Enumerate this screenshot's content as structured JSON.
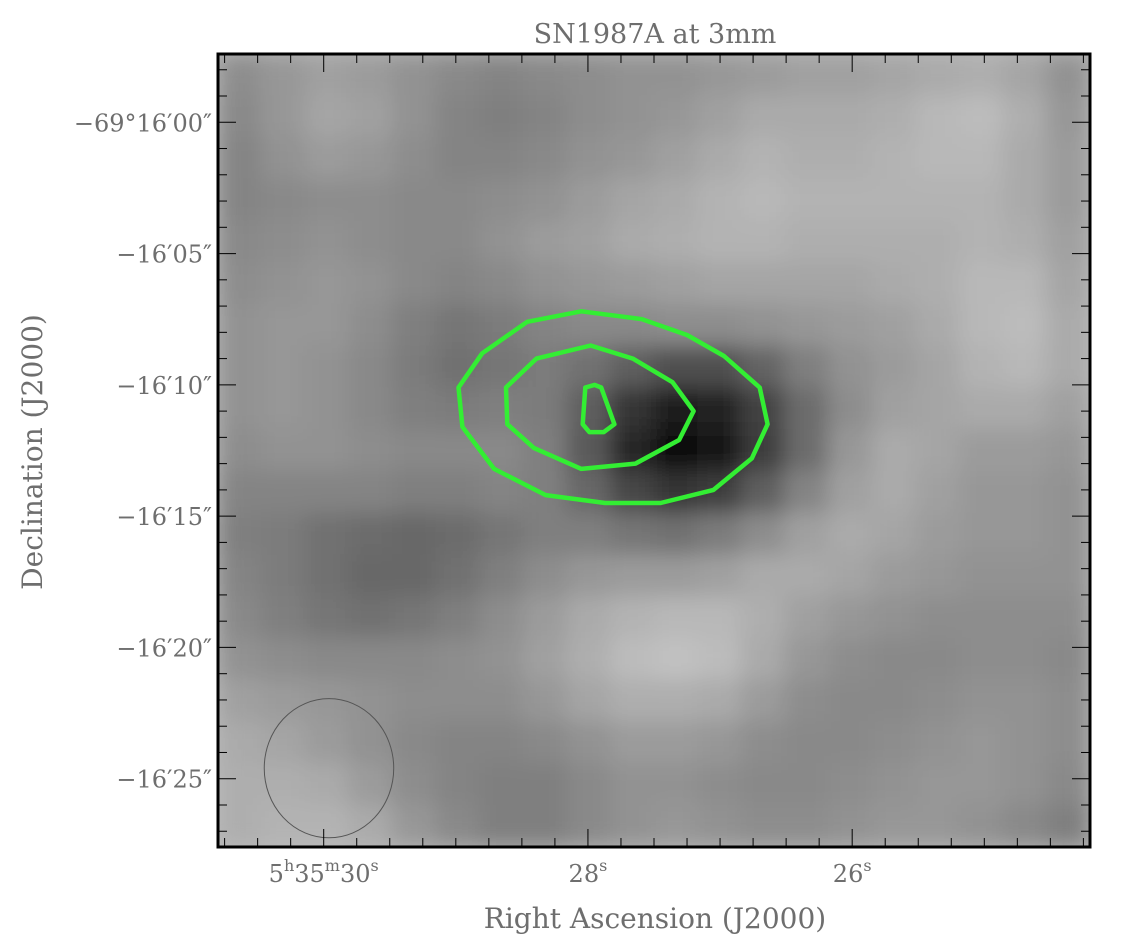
{
  "chart_data": {
    "type": "heatmap",
    "title": "SN1987A at 3mm",
    "xlabel": "Right Ascension (J2000)",
    "ylabel": "Declination (J2000)",
    "x_unit": "RA offset (s), 0 = 5h35m30s",
    "y_unit": "Dec offset (arcsec), 0 = -69°16'00\"",
    "xlim": [
      0.8,
      -5.8
    ],
    "ylim": [
      2.6,
      -27.6
    ],
    "x_ticks": [
      {
        "value": 0,
        "label": "5h35m30s",
        "parts": [
          {
            "t": "5",
            "sup": false
          },
          {
            "t": "h",
            "sup": true
          },
          {
            "t": "35",
            "sup": false
          },
          {
            "t": "m",
            "sup": true
          },
          {
            "t": "30",
            "sup": false
          },
          {
            "t": "s",
            "sup": true
          }
        ]
      },
      {
        "value": -2,
        "label": "28s",
        "parts": [
          {
            "t": "28",
            "sup": false
          },
          {
            "t": "s",
            "sup": true
          }
        ]
      },
      {
        "value": -4,
        "label": "26s",
        "parts": [
          {
            "t": "26",
            "sup": false
          },
          {
            "t": "s",
            "sup": true
          }
        ]
      }
    ],
    "y_ticks": [
      {
        "value": 0,
        "label": "−69°16′00″"
      },
      {
        "value": -5,
        "label": "−16′05″"
      },
      {
        "value": -10,
        "label": "−16′10″"
      },
      {
        "value": -15,
        "label": "−16′15″"
      },
      {
        "value": -20,
        "label": "−16′20″"
      },
      {
        "value": -25,
        "label": "−16′25″"
      }
    ],
    "image_grid": {
      "cols": 20,
      "rows": 19,
      "values": [
        [
          0.42,
          0.38,
          0.34,
          0.36,
          0.4,
          0.44,
          0.46,
          0.44,
          0.42,
          0.4,
          0.4,
          0.38,
          0.36,
          0.34,
          0.34,
          0.32,
          0.3,
          0.28,
          0.32,
          0.4
        ],
        [
          0.44,
          0.38,
          0.32,
          0.34,
          0.4,
          0.46,
          0.48,
          0.46,
          0.42,
          0.4,
          0.38,
          0.34,
          0.3,
          0.3,
          0.3,
          0.28,
          0.24,
          0.22,
          0.28,
          0.38
        ],
        [
          0.46,
          0.4,
          0.36,
          0.38,
          0.42,
          0.46,
          0.46,
          0.44,
          0.4,
          0.38,
          0.34,
          0.3,
          0.26,
          0.28,
          0.28,
          0.26,
          0.24,
          0.24,
          0.3,
          0.36
        ],
        [
          0.46,
          0.44,
          0.42,
          0.42,
          0.44,
          0.44,
          0.42,
          0.4,
          0.36,
          0.32,
          0.3,
          0.26,
          0.24,
          0.26,
          0.26,
          0.26,
          0.26,
          0.26,
          0.3,
          0.36
        ],
        [
          0.44,
          0.42,
          0.4,
          0.42,
          0.44,
          0.44,
          0.4,
          0.36,
          0.34,
          0.3,
          0.28,
          0.26,
          0.26,
          0.28,
          0.28,
          0.28,
          0.28,
          0.26,
          0.28,
          0.34
        ],
        [
          0.42,
          0.4,
          0.38,
          0.4,
          0.44,
          0.46,
          0.44,
          0.4,
          0.38,
          0.36,
          0.34,
          0.32,
          0.32,
          0.32,
          0.32,
          0.3,
          0.28,
          0.24,
          0.24,
          0.32
        ],
        [
          0.4,
          0.38,
          0.38,
          0.42,
          0.48,
          0.52,
          0.5,
          0.46,
          0.44,
          0.44,
          0.42,
          0.42,
          0.4,
          0.38,
          0.36,
          0.34,
          0.3,
          0.24,
          0.22,
          0.3
        ],
        [
          0.4,
          0.38,
          0.4,
          0.44,
          0.5,
          0.54,
          0.52,
          0.5,
          0.54,
          0.62,
          0.68,
          0.68,
          0.6,
          0.48,
          0.4,
          0.36,
          0.32,
          0.26,
          0.24,
          0.3
        ],
        [
          0.4,
          0.38,
          0.4,
          0.44,
          0.48,
          0.5,
          0.48,
          0.5,
          0.62,
          0.8,
          0.9,
          0.88,
          0.74,
          0.56,
          0.42,
          0.34,
          0.32,
          0.3,
          0.3,
          0.34
        ],
        [
          0.42,
          0.4,
          0.4,
          0.42,
          0.44,
          0.44,
          0.44,
          0.48,
          0.64,
          0.86,
          0.96,
          0.92,
          0.76,
          0.56,
          0.38,
          0.3,
          0.32,
          0.36,
          0.36,
          0.38
        ],
        [
          0.46,
          0.46,
          0.46,
          0.46,
          0.48,
          0.48,
          0.46,
          0.48,
          0.58,
          0.72,
          0.8,
          0.76,
          0.62,
          0.46,
          0.34,
          0.3,
          0.34,
          0.38,
          0.38,
          0.4
        ],
        [
          0.48,
          0.5,
          0.54,
          0.56,
          0.58,
          0.56,
          0.52,
          0.48,
          0.48,
          0.52,
          0.54,
          0.5,
          0.42,
          0.34,
          0.3,
          0.32,
          0.36,
          0.38,
          0.38,
          0.4
        ],
        [
          0.46,
          0.5,
          0.54,
          0.58,
          0.58,
          0.54,
          0.48,
          0.42,
          0.38,
          0.36,
          0.36,
          0.34,
          0.3,
          0.3,
          0.32,
          0.36,
          0.38,
          0.4,
          0.4,
          0.4
        ],
        [
          0.44,
          0.48,
          0.52,
          0.54,
          0.52,
          0.48,
          0.42,
          0.36,
          0.3,
          0.26,
          0.24,
          0.24,
          0.28,
          0.34,
          0.38,
          0.4,
          0.42,
          0.42,
          0.42,
          0.42
        ],
        [
          0.4,
          0.42,
          0.44,
          0.44,
          0.44,
          0.42,
          0.4,
          0.34,
          0.28,
          0.22,
          0.2,
          0.22,
          0.3,
          0.38,
          0.42,
          0.44,
          0.44,
          0.42,
          0.42,
          0.44
        ],
        [
          0.34,
          0.36,
          0.38,
          0.4,
          0.42,
          0.42,
          0.42,
          0.38,
          0.32,
          0.28,
          0.28,
          0.3,
          0.36,
          0.42,
          0.44,
          0.44,
          0.42,
          0.4,
          0.4,
          0.42
        ],
        [
          0.3,
          0.32,
          0.36,
          0.4,
          0.44,
          0.46,
          0.46,
          0.44,
          0.4,
          0.36,
          0.36,
          0.38,
          0.42,
          0.44,
          0.44,
          0.42,
          0.4,
          0.38,
          0.4,
          0.42
        ],
        [
          0.28,
          0.28,
          0.3,
          0.36,
          0.42,
          0.46,
          0.48,
          0.48,
          0.44,
          0.4,
          0.4,
          0.42,
          0.44,
          0.44,
          0.42,
          0.4,
          0.38,
          0.38,
          0.4,
          0.44
        ],
        [
          0.28,
          0.26,
          0.26,
          0.3,
          0.38,
          0.44,
          0.48,
          0.48,
          0.44,
          0.4,
          0.38,
          0.4,
          0.42,
          0.42,
          0.4,
          0.38,
          0.38,
          0.4,
          0.44,
          0.48
        ]
      ]
    },
    "contours": [
      {
        "points": [
          [
            -2.41,
            -7.5
          ],
          [
            -1.95,
            -7.2
          ],
          [
            -1.54,
            -7.6
          ],
          [
            -1.2,
            -8.8
          ],
          [
            -1.02,
            -10.1
          ],
          [
            -1.05,
            -11.6
          ],
          [
            -1.29,
            -13.2
          ],
          [
            -1.68,
            -14.2
          ],
          [
            -2.13,
            -14.5
          ],
          [
            -2.55,
            -14.5
          ],
          [
            -2.95,
            -14.0
          ],
          [
            -3.24,
            -12.8
          ],
          [
            -3.36,
            -11.5
          ],
          [
            -3.3,
            -10.1
          ],
          [
            -3.03,
            -8.9
          ],
          [
            -2.75,
            -8.1
          ]
        ]
      },
      {
        "points": [
          [
            -2.02,
            -8.5
          ],
          [
            -1.61,
            -9.0
          ],
          [
            -1.38,
            -10.1
          ],
          [
            -1.39,
            -11.5
          ],
          [
            -1.59,
            -12.4
          ],
          [
            -1.95,
            -13.2
          ],
          [
            -2.36,
            -13.0
          ],
          [
            -2.69,
            -12.1
          ],
          [
            -2.8,
            -11.0
          ],
          [
            -2.64,
            -9.9
          ],
          [
            -2.34,
            -9.0
          ]
        ]
      },
      {
        "points": [
          [
            -2.05,
            -10.0
          ],
          [
            -1.98,
            -10.1
          ],
          [
            -1.96,
            -11.5
          ],
          [
            -2.01,
            -11.8
          ],
          [
            -2.12,
            -11.8
          ],
          [
            -2.2,
            -11.5
          ],
          [
            -2.1,
            -10.1
          ]
        ]
      }
    ],
    "beam": {
      "center": [
        -0.04,
        -24.6
      ],
      "ra_diameter": 0.98,
      "dec_diameter": 5.3
    },
    "colors": {
      "contour": "#33ee33",
      "beam": "#555555",
      "frame": "#000000",
      "text": "#6e6e6e"
    },
    "grid": false,
    "colormap": "grayscale, dark = high flux"
  }
}
